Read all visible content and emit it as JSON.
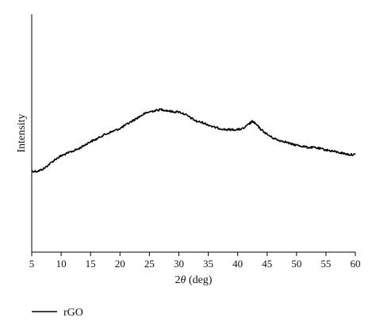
{
  "chart_data": {
    "type": "line",
    "xlabel_prefix": "2",
    "xlabel_theta": "θ",
    "xlabel_suffix": " (deg)",
    "ylabel": "Intensity",
    "xlim": [
      5,
      60
    ],
    "ylim": [
      0,
      1
    ],
    "xticks": [
      5,
      10,
      15,
      20,
      25,
      30,
      35,
      40,
      45,
      50,
      55,
      60
    ],
    "yticks": [],
    "grid": false,
    "legend_placement": "bottom-left",
    "series": [
      {
        "name": "rGO",
        "color": "#000000",
        "x": [
          5,
          6,
          7,
          8,
          9,
          10,
          11,
          12,
          13,
          14,
          15,
          16,
          17,
          18,
          19,
          20,
          21,
          22,
          23,
          24,
          25,
          26,
          27,
          28,
          29,
          30,
          31,
          32,
          33,
          34,
          35,
          36,
          37,
          38,
          39,
          40,
          41,
          42,
          42.5,
          43,
          44,
          45,
          46,
          47,
          48,
          49,
          50,
          51,
          52,
          53,
          54,
          55,
          56,
          57,
          58,
          59,
          60
        ],
        "y": [
          0.34,
          0.34,
          0.35,
          0.37,
          0.39,
          0.405,
          0.415,
          0.425,
          0.435,
          0.45,
          0.465,
          0.475,
          0.49,
          0.5,
          0.51,
          0.52,
          0.535,
          0.55,
          0.565,
          0.58,
          0.59,
          0.595,
          0.6,
          0.595,
          0.59,
          0.59,
          0.58,
          0.565,
          0.55,
          0.545,
          0.535,
          0.525,
          0.52,
          0.515,
          0.515,
          0.515,
          0.52,
          0.54,
          0.55,
          0.54,
          0.515,
          0.495,
          0.48,
          0.47,
          0.465,
          0.455,
          0.45,
          0.445,
          0.44,
          0.44,
          0.435,
          0.43,
          0.425,
          0.42,
          0.415,
          0.41,
          0.41
        ]
      }
    ]
  }
}
